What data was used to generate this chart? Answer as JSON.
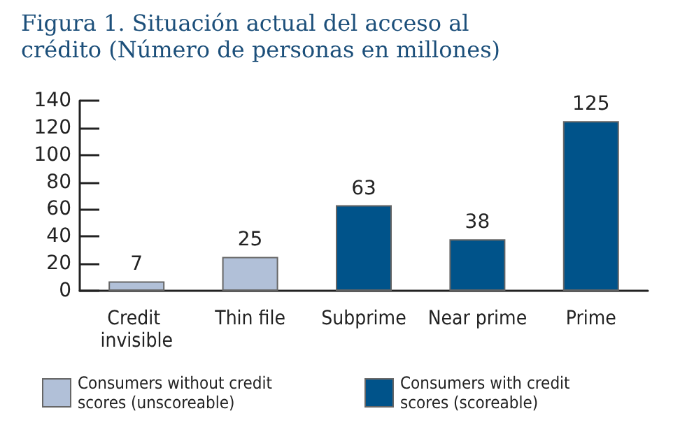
{
  "chart_data": {
    "type": "bar",
    "title": "Figura 1. Situación actual del acceso al crédito (Número de personas en millones)",
    "categories": [
      "Credit invisible",
      "Thin file",
      "Subprime",
      "Near prime",
      "Prime"
    ],
    "series": [
      {
        "name": "Consumers without credit scores (unscoreable)",
        "color": "#b1c0d8",
        "values": [
          7,
          25,
          null,
          null,
          null
        ]
      },
      {
        "name": "Consumers with credit scores (scoreable)",
        "color": "#00538a",
        "values": [
          null,
          null,
          63,
          38,
          125
        ]
      }
    ],
    "stacked": true,
    "ylim": [
      0,
      140
    ],
    "yticks": [
      0,
      20,
      40,
      60,
      80,
      100,
      120,
      140
    ],
    "data_labels": true,
    "grid": false,
    "legend": "bottom"
  }
}
